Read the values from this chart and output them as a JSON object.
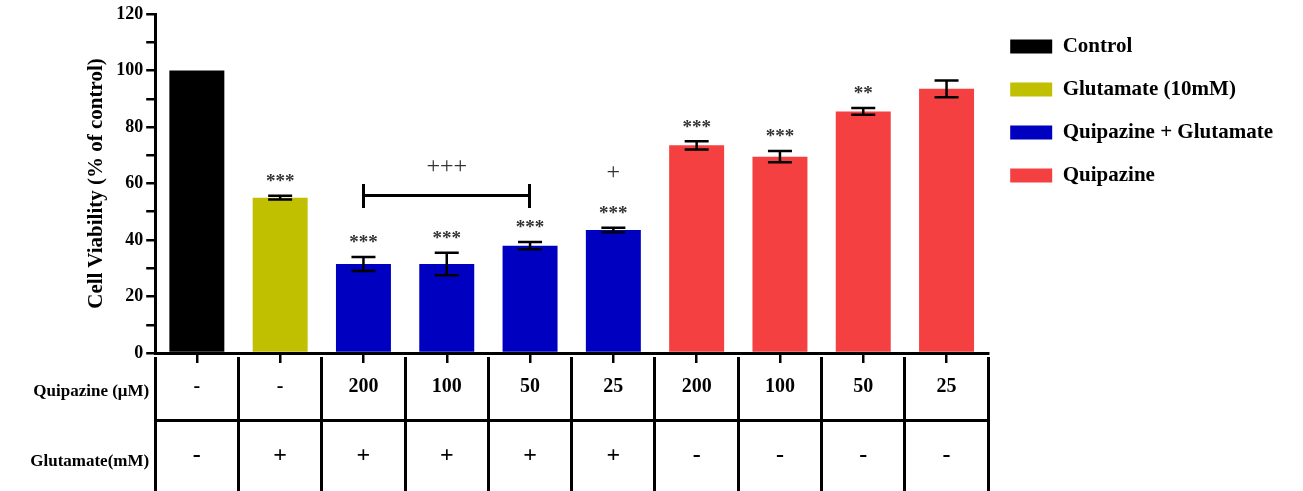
{
  "chart_data": {
    "type": "bar",
    "ylabel": "Cell Viability (% of control)",
    "xlabel": "Quipazine (μM)",
    "categories": [
      "-",
      "-",
      "200",
      "100",
      "50",
      "25",
      "200",
      "100",
      "50",
      "25"
    ],
    "series": [
      {
        "name": "Control",
        "color": "#000000",
        "values": [
          100,
          null,
          null,
          null,
          null,
          null,
          null,
          null,
          null,
          null
        ],
        "errors": [
          null,
          null,
          null,
          null,
          null,
          null,
          null,
          null,
          null,
          null
        ],
        "value_labels": [
          null,
          null,
          null,
          null,
          null,
          null,
          null,
          null,
          null,
          null
        ]
      },
      {
        "name": "Glutamate (10mM)",
        "color": "#c0c000",
        "values": [
          null,
          55,
          null,
          null,
          null,
          null,
          null,
          null,
          null,
          null
        ],
        "errors": [
          null,
          0.7,
          null,
          null,
          null,
          null,
          null,
          null,
          null,
          null
        ],
        "value_labels": [
          null,
          "***",
          null,
          null,
          null,
          null,
          null,
          null,
          null,
          null
        ]
      },
      {
        "name": "Quipazine + Glutamate",
        "color": "#0000c0",
        "values": [
          null,
          null,
          31.5,
          31.5,
          38,
          43.5,
          null,
          null,
          null,
          null
        ],
        "errors": [
          null,
          null,
          2.5,
          4,
          1.3,
          0.8,
          null,
          null,
          null,
          null
        ],
        "value_labels": [
          null,
          null,
          "***",
          "***",
          "***",
          "***",
          null,
          null,
          null,
          null
        ]
      },
      {
        "name": "Quipazine",
        "color": "#f44040",
        "values": [
          null,
          null,
          null,
          null,
          null,
          null,
          73.5,
          69.5,
          85.5,
          93.5
        ],
        "errors": [
          null,
          null,
          null,
          null,
          null,
          null,
          1.5,
          2,
          1.2,
          3
        ],
        "value_labels": [
          null,
          null,
          null,
          null,
          null,
          null,
          "***",
          "***",
          "**",
          null
        ]
      }
    ],
    "ylim": [
      0,
      120
    ],
    "yticks": [
      0,
      {
        "value": 10,
        "label": null
      },
      20,
      {
        "value": 30,
        "label": null
      },
      40,
      {
        "value": 50,
        "label": null
      },
      60,
      {
        "value": 70,
        "label": null
      },
      80,
      {
        "value": 90,
        "label": null
      },
      100,
      {
        "value": 110,
        "label": null
      },
      120
    ],
    "grid": false,
    "legend": "top right",
    "annotations": [
      "+++",
      "+",
      "Glutamate(mM)",
      "-",
      "+",
      "+",
      "+",
      "+",
      "+",
      "-",
      "-",
      "-",
      "-"
    ]
  }
}
